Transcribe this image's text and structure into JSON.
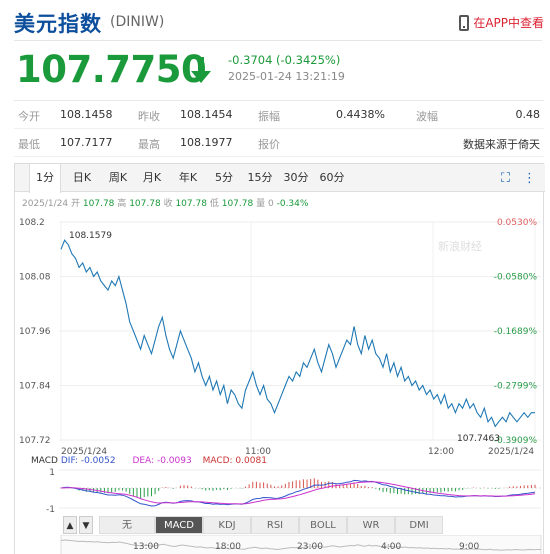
{
  "header": {
    "name": "美元指数",
    "code": "(DINIW)",
    "app_link": "在APP中查看"
  },
  "quote": {
    "price": "107.7750",
    "change": "-0.3704 (-0.3425%)",
    "datetime": "2025-01-24 13:21:19",
    "direction_icon": "down-arrow-icon",
    "color": "#1a9a3a"
  },
  "stats": {
    "row1": [
      {
        "label": "今开",
        "value": "108.1458"
      },
      {
        "label": "昨收",
        "value": "108.1454"
      },
      {
        "label": "振幅",
        "value": "0.4438%"
      },
      {
        "label": "波幅",
        "value": "0.48"
      }
    ],
    "row2": [
      {
        "label": "最低",
        "value": "107.7177"
      },
      {
        "label": "最高",
        "value": "108.1977"
      },
      {
        "label": "报价",
        "value": "数据来源于倚天"
      }
    ]
  },
  "chart_tabs": [
    "1分",
    "日K",
    "周K",
    "月K",
    "年K",
    "5分",
    "15分",
    "30分",
    "60分"
  ],
  "chart_tools": {
    "fullscreen_icon": "⛶",
    "more_icon": "⋮"
  },
  "info_line": {
    "date": "2025/1/24",
    "items": [
      {
        "label": "开",
        "value": "107.78"
      },
      {
        "label": "高",
        "value": "107.78"
      },
      {
        "label": "收",
        "value": "107.78"
      },
      {
        "label": "低",
        "value": "107.78"
      },
      {
        "label": "量",
        "value": "0"
      },
      {
        "label": "",
        "value": "-0.34%"
      }
    ]
  },
  "chart_data": {
    "type": "line",
    "y_ticks_left": [
      "108.2",
      "108.08",
      "107.96",
      "107.84",
      "107.72"
    ],
    "y_ticks_right": [
      "0.0530%",
      "-0.0580%",
      "-0.1689%",
      "-0.2799%",
      "-0.3909%"
    ],
    "ylim": [
      107.72,
      108.2
    ],
    "x_labels": [
      "2025/1/24",
      "11:00",
      "12:00",
      "2025/1/24"
    ],
    "annotations": [
      "108.1579",
      "107.7463"
    ],
    "watermark": "新浪财经",
    "series": [
      {
        "values": [
          108.14,
          108.16,
          108.15,
          108.13,
          108.12,
          108.1,
          108.11,
          108.09,
          108.1,
          108.08,
          108.09,
          108.07,
          108.06,
          108.05,
          108.07,
          108.06,
          108.08,
          108.05,
          108.02,
          107.98,
          107.96,
          107.94,
          107.92,
          107.95,
          107.93,
          107.91,
          107.94,
          107.97,
          107.99,
          107.95,
          107.92,
          107.9,
          107.93,
          107.96,
          107.94,
          107.92,
          107.9,
          107.87,
          107.89,
          107.86,
          107.84,
          107.86,
          107.83,
          107.85,
          107.82,
          107.84,
          107.8,
          107.83,
          107.82,
          107.8,
          107.79,
          107.83,
          107.85,
          107.87,
          107.84,
          107.82,
          107.84,
          107.81,
          107.8,
          107.78,
          107.8,
          107.82,
          107.84,
          107.86,
          107.85,
          107.87,
          107.86,
          107.89,
          107.88,
          107.9,
          107.92,
          107.89,
          107.87,
          107.9,
          107.93,
          107.91,
          107.88,
          107.9,
          107.92,
          107.94,
          107.93,
          107.97,
          107.93,
          107.91,
          107.95,
          107.92,
          107.94,
          107.91,
          107.9,
          107.88,
          107.91,
          107.87,
          107.89,
          107.86,
          107.88,
          107.85,
          107.86,
          107.84,
          107.85,
          107.83,
          107.84,
          107.82,
          107.83,
          107.81,
          107.82,
          107.8,
          107.82,
          107.79,
          107.8,
          107.78,
          107.8,
          107.79,
          107.81,
          107.79,
          107.8,
          107.78,
          107.77,
          107.79,
          107.76,
          107.77,
          107.75,
          107.76,
          107.77,
          107.76,
          107.78,
          107.77,
          107.76,
          107.77,
          107.78,
          107.77,
          107.78,
          107.78
        ]
      }
    ]
  },
  "macd": {
    "label": "MACD",
    "dif": "DIF: -0.0052",
    "dea": "DEA: -0.0093",
    "macd": "MACD: 0.0081",
    "y_ticks": [
      "1",
      "-1"
    ],
    "colors": {
      "dif": "#3355cc",
      "dea": "#cc33cc",
      "macd": "#cc3333"
    }
  },
  "indicator_tabs": [
    "无",
    "MACD",
    "KDJ",
    "RSI",
    "BOLL",
    "WR",
    "DMI"
  ],
  "indicator_nav": [
    "▲",
    "▼"
  ],
  "timeline_labels": [
    "13:00",
    "18:00",
    "23:00",
    "4:00",
    "9:00"
  ]
}
